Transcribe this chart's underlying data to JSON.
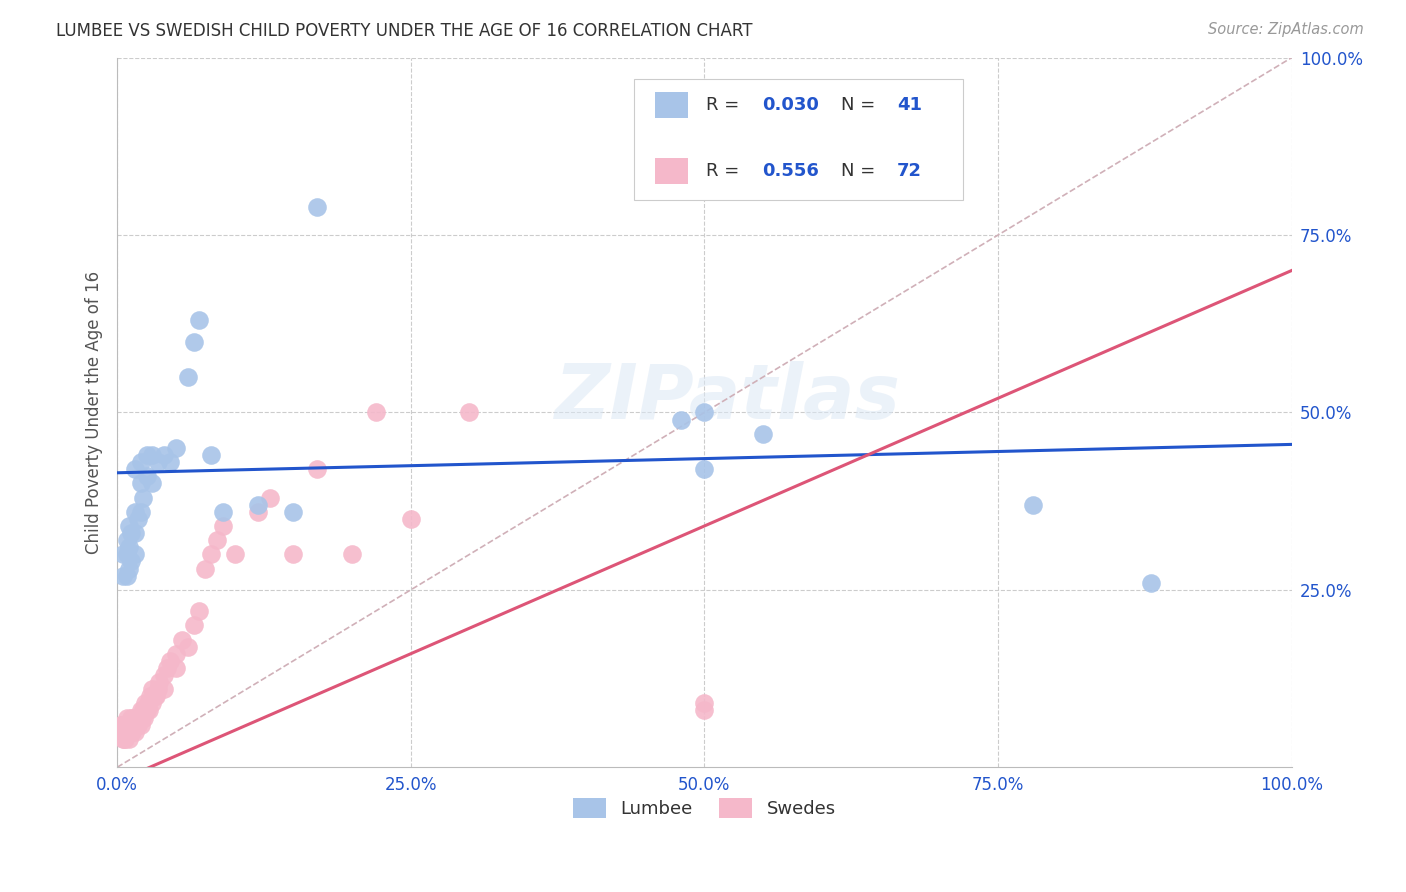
{
  "title": "LUMBEE VS SWEDISH CHILD POVERTY UNDER THE AGE OF 16 CORRELATION CHART",
  "source": "Source: ZipAtlas.com",
  "ylabel": "Child Poverty Under the Age of 16",
  "xlim": [
    0,
    1
  ],
  "ylim": [
    0,
    1
  ],
  "xticks": [
    0,
    0.25,
    0.5,
    0.75,
    1.0
  ],
  "yticks": [
    0.25,
    0.5,
    0.75,
    1.0
  ],
  "xticklabels": [
    "0.0%",
    "25.0%",
    "50.0%",
    "75.0%",
    "100.0%"
  ],
  "yticklabels": [
    "25.0%",
    "50.0%",
    "75.0%",
    "100.0%"
  ],
  "lumbee_R": 0.03,
  "lumbee_N": 41,
  "swedes_R": 0.556,
  "swedes_N": 72,
  "lumbee_color": "#a8c4e8",
  "swedes_color": "#f5b8ca",
  "lumbee_line_color": "#2255cc",
  "swedes_line_color": "#dd5577",
  "diagonal_color": "#d0b0b8",
  "title_color": "#333333",
  "source_color": "#999999",
  "legend_color": "#2255cc",
  "background_color": "#ffffff",
  "watermark": "ZIPatlas",
  "lumbee_x": [
    0.005,
    0.005,
    0.008,
    0.008,
    0.008,
    0.01,
    0.01,
    0.01,
    0.012,
    0.012,
    0.015,
    0.015,
    0.015,
    0.015,
    0.018,
    0.02,
    0.02,
    0.02,
    0.022,
    0.025,
    0.025,
    0.03,
    0.03,
    0.035,
    0.04,
    0.045,
    0.05,
    0.06,
    0.065,
    0.07,
    0.08,
    0.09,
    0.12,
    0.15,
    0.17,
    0.48,
    0.5,
    0.5,
    0.55,
    0.78,
    0.88
  ],
  "lumbee_y": [
    0.27,
    0.3,
    0.27,
    0.3,
    0.32,
    0.28,
    0.31,
    0.34,
    0.29,
    0.33,
    0.3,
    0.33,
    0.36,
    0.42,
    0.35,
    0.36,
    0.4,
    0.43,
    0.38,
    0.41,
    0.44,
    0.4,
    0.44,
    0.43,
    0.44,
    0.43,
    0.45,
    0.55,
    0.6,
    0.63,
    0.44,
    0.36,
    0.37,
    0.36,
    0.79,
    0.49,
    0.42,
    0.5,
    0.47,
    0.37,
    0.26
  ],
  "swedes_x": [
    0.002,
    0.003,
    0.003,
    0.004,
    0.004,
    0.005,
    0.005,
    0.005,
    0.006,
    0.006,
    0.007,
    0.007,
    0.008,
    0.008,
    0.009,
    0.009,
    0.01,
    0.01,
    0.01,
    0.012,
    0.012,
    0.013,
    0.013,
    0.014,
    0.015,
    0.015,
    0.016,
    0.017,
    0.018,
    0.019,
    0.02,
    0.02,
    0.021,
    0.022,
    0.023,
    0.024,
    0.025,
    0.026,
    0.027,
    0.028,
    0.03,
    0.03,
    0.032,
    0.033,
    0.035,
    0.036,
    0.04,
    0.04,
    0.042,
    0.045,
    0.05,
    0.05,
    0.055,
    0.06,
    0.065,
    0.07,
    0.075,
    0.08,
    0.085,
    0.09,
    0.1,
    0.12,
    0.13,
    0.15,
    0.17,
    0.2,
    0.22,
    0.25,
    0.3,
    0.5,
    0.5,
    0.55
  ],
  "swedes_y": [
    0.05,
    0.05,
    0.06,
    0.05,
    0.06,
    0.04,
    0.05,
    0.06,
    0.04,
    0.05,
    0.04,
    0.06,
    0.05,
    0.07,
    0.05,
    0.06,
    0.04,
    0.05,
    0.06,
    0.05,
    0.07,
    0.05,
    0.07,
    0.06,
    0.05,
    0.07,
    0.06,
    0.07,
    0.06,
    0.07,
    0.06,
    0.08,
    0.07,
    0.08,
    0.07,
    0.09,
    0.08,
    0.09,
    0.08,
    0.1,
    0.09,
    0.11,
    0.1,
    0.1,
    0.11,
    0.12,
    0.11,
    0.13,
    0.14,
    0.15,
    0.14,
    0.16,
    0.18,
    0.17,
    0.2,
    0.22,
    0.28,
    0.3,
    0.32,
    0.34,
    0.3,
    0.36,
    0.38,
    0.3,
    0.42,
    0.3,
    0.5,
    0.35,
    0.5,
    0.08,
    0.09,
    0.86
  ],
  "lumbee_line_x": [
    0.0,
    1.0
  ],
  "lumbee_line_y": [
    0.415,
    0.455
  ],
  "swedes_line_x": [
    0.0,
    1.0
  ],
  "swedes_line_y": [
    -0.02,
    0.7
  ]
}
